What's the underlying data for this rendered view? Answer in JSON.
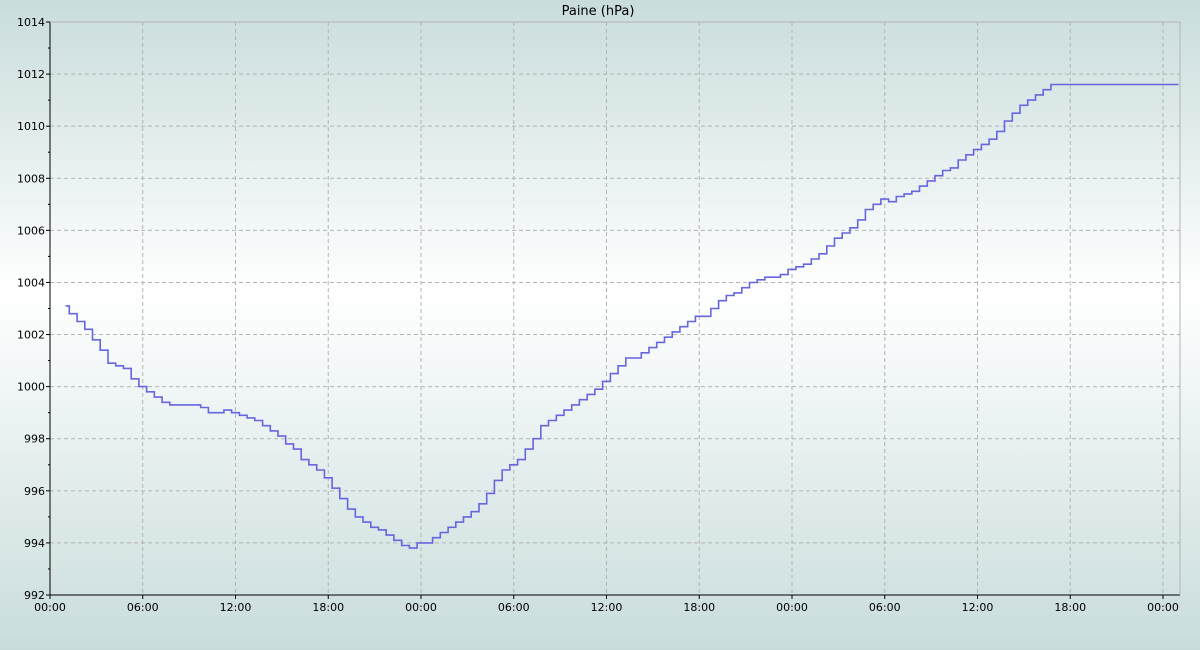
{
  "chart_data": {
    "type": "line",
    "title": "Paine (hPa)",
    "xlabel": "",
    "ylabel": "",
    "ylim": [
      992,
      1014
    ],
    "y_ticks": [
      992,
      994,
      996,
      998,
      1000,
      1002,
      1004,
      1006,
      1008,
      1010,
      1012,
      1014
    ],
    "x_ticks": [
      "00:00",
      "06:00",
      "12:00",
      "18:00",
      "00:00",
      "06:00",
      "12:00",
      "18:00",
      "00:00",
      "06:00",
      "12:00",
      "18:00",
      "00:00"
    ],
    "x_range_hours": [
      0,
      73.1
    ],
    "grid": true,
    "line_color": "#6666dd",
    "background_gradient": [
      "#c9dcdc",
      "#ffffff"
    ],
    "series": [
      {
        "x": [
          1.0,
          1.5,
          2.0,
          2.5,
          3.0,
          3.5,
          4.0,
          4.5,
          5.0,
          5.5,
          6.0,
          6.5,
          7.0,
          7.5,
          8.0,
          8.5,
          9.0,
          9.5,
          10.0,
          10.5,
          11.0,
          11.5,
          12.0,
          12.5,
          13.0,
          13.5,
          14.0,
          14.5,
          15.0,
          15.5,
          16.0,
          16.5,
          17.0,
          17.5,
          18.0,
          18.5,
          19.0,
          19.5,
          20.0,
          20.5,
          21.0,
          21.5,
          22.0,
          22.5,
          23.0,
          23.5,
          24.0,
          24.5,
          25.0,
          25.5,
          26.0,
          26.5,
          27.0,
          27.5,
          28.0,
          28.5,
          29.0,
          29.5,
          30.0,
          30.5,
          31.0,
          31.5,
          32.0,
          32.5,
          33.0,
          33.5,
          34.0,
          34.5,
          35.0,
          35.5,
          36.0,
          36.5,
          37.0,
          37.5,
          38.0,
          38.5,
          39.0,
          39.5,
          40.0,
          40.5,
          41.0,
          41.5,
          42.0,
          42.5,
          43.0,
          43.5,
          44.0,
          44.5,
          45.0,
          45.5,
          46.0,
          46.5,
          47.0,
          47.5,
          48.0,
          48.5,
          49.0,
          49.5,
          50.0,
          50.5,
          51.0,
          51.5,
          52.0,
          52.5,
          53.0,
          53.5,
          54.0,
          54.5,
          55.0,
          55.5,
          56.0,
          56.5,
          57.0,
          57.5,
          58.0,
          58.5,
          59.0,
          59.5,
          60.0,
          60.5,
          61.0,
          61.5,
          62.0,
          62.5,
          63.0,
          63.5,
          64.0,
          64.5,
          65.0,
          65.5,
          66.0,
          66.5,
          67.0,
          67.5,
          68.0,
          68.5,
          69.0,
          69.5,
          70.0,
          70.5,
          71.0,
          71.5,
          72.0,
          72.5,
          73.0
        ],
        "y": [
          1003.1,
          1002.8,
          1002.5,
          1002.2,
          1001.8,
          1001.4,
          1000.9,
          1000.8,
          1000.7,
          1000.3,
          1000.0,
          999.8,
          999.6,
          999.4,
          999.3,
          999.3,
          999.3,
          999.3,
          999.2,
          999.0,
          999.0,
          999.1,
          999.0,
          998.9,
          998.8,
          998.7,
          998.5,
          998.3,
          998.1,
          997.8,
          997.6,
          997.2,
          997.0,
          996.8,
          996.5,
          996.1,
          995.7,
          995.3,
          995.0,
          994.8,
          994.6,
          994.5,
          994.3,
          994.1,
          993.9,
          993.8,
          994.0,
          994.0,
          994.2,
          994.4,
          994.6,
          994.8,
          995.0,
          995.2,
          995.5,
          995.9,
          996.4,
          996.8,
          997.0,
          997.2,
          997.6,
          998.0,
          998.5,
          998.7,
          998.9,
          999.1,
          999.3,
          999.5,
          999.7,
          999.9,
          1000.2,
          1000.5,
          1000.8,
          1001.1,
          1001.1,
          1001.3,
          1001.5,
          1001.7,
          1001.9,
          1002.1,
          1002.3,
          1002.5,
          1002.7,
          1002.7,
          1003.0,
          1003.3,
          1003.5,
          1003.6,
          1003.8,
          1004.0,
          1004.1,
          1004.2,
          1004.2,
          1004.3,
          1004.5,
          1004.6,
          1004.7,
          1004.9,
          1005.1,
          1005.4,
          1005.7,
          1005.9,
          1006.1,
          1006.4,
          1006.8,
          1007.0,
          1007.2,
          1007.1,
          1007.3,
          1007.4,
          1007.5,
          1007.7,
          1007.9,
          1008.1,
          1008.3,
          1008.4,
          1008.7,
          1008.9,
          1009.1,
          1009.3,
          1009.5,
          1009.8,
          1010.2,
          1010.5,
          1010.8,
          1011.0,
          1011.2,
          1011.4,
          1011.6,
          1011.6,
          1011.6,
          1011.6,
          1011.6,
          1011.6,
          1011.6,
          1011.6,
          1011.6,
          1011.6,
          1011.6,
          1011.6,
          1011.6,
          1011.6,
          1011.6,
          1011.6,
          1011.6
        ]
      }
    ]
  }
}
